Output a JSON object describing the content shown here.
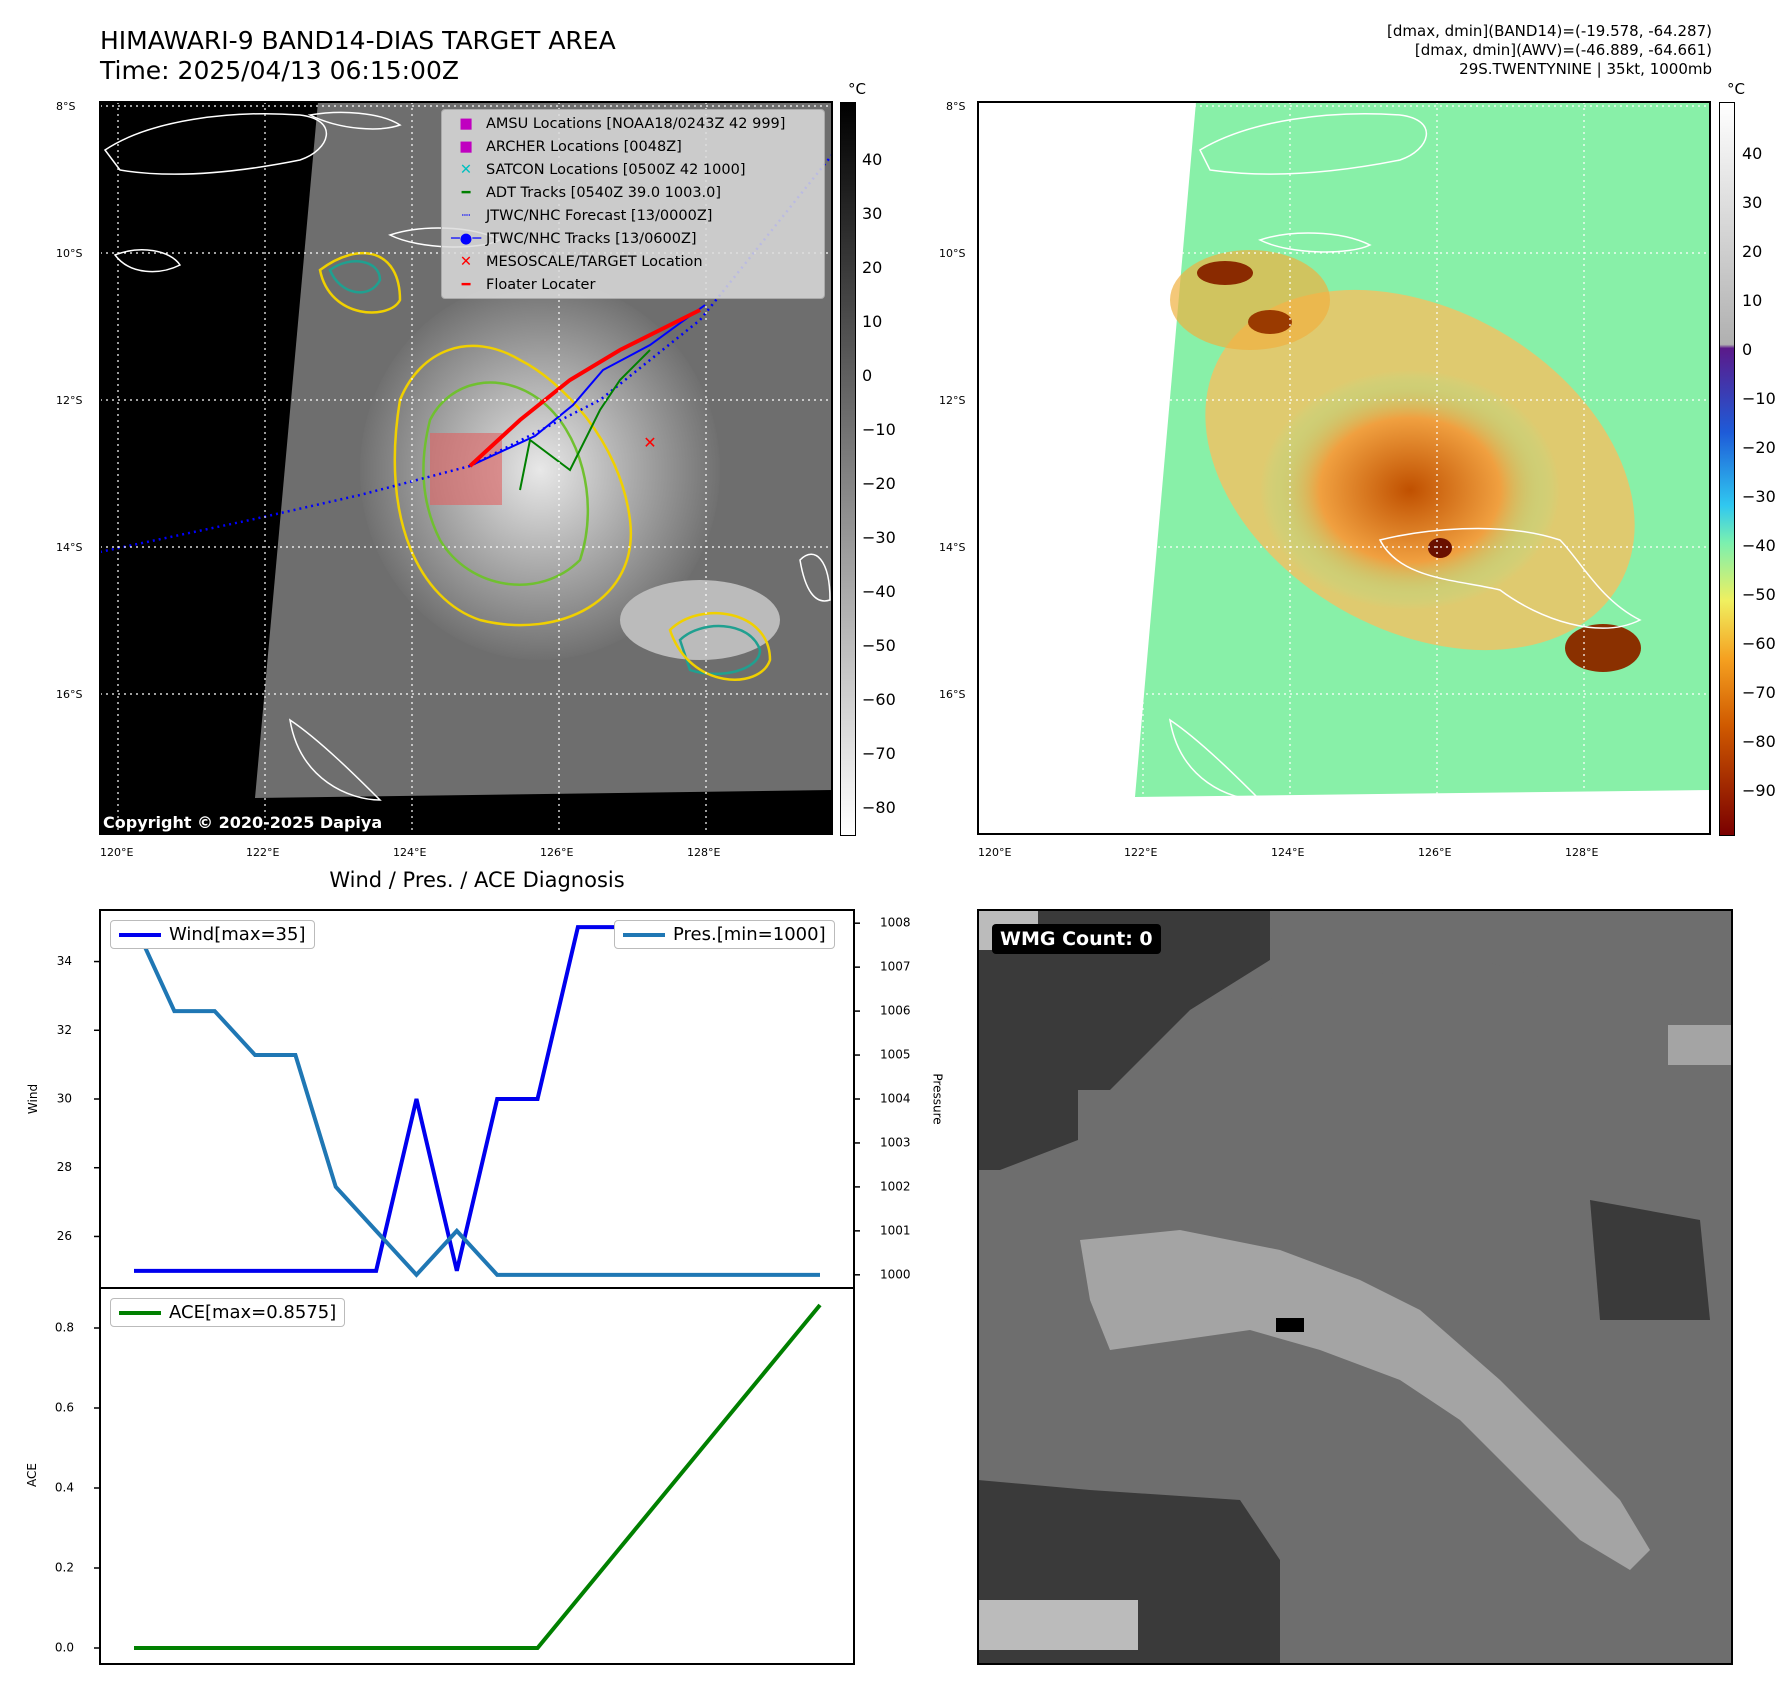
{
  "header": {
    "title_line1": "HIMAWARI-9 BAND14-DIAS TARGET AREA",
    "title_line2": "Time: 2025/04/13 06:15:00Z",
    "right_line1": "[dmax, dmin](BAND14)=(-19.578, -64.287)",
    "right_line2": "[dmax, dmin](AWV)=(-46.889, -64.661)",
    "right_line3": "29S.TWENTYNINE | 35kt, 1000mb"
  },
  "maps": {
    "lat_labels": [
      "8°S",
      "10°S",
      "12°S",
      "14°S",
      "16°S"
    ],
    "lon_labels": [
      "120°E",
      "122°E",
      "124°E",
      "126°E",
      "128°E"
    ],
    "copyright": "Copyright © 2020-2025 Dapiya",
    "colorbar_unit": "°C",
    "band14_colorbar_ticks": [
      "40",
      "30",
      "20",
      "10",
      "0",
      "−10",
      "−20",
      "−30",
      "−40",
      "−50",
      "−60",
      "−70",
      "−80"
    ],
    "awv_colorbar_ticks": [
      "40",
      "30",
      "20",
      "10",
      "0",
      "−10",
      "−20",
      "−30",
      "−40",
      "−50",
      "−60",
      "−70",
      "−80",
      "−90"
    ],
    "legend": [
      {
        "label": "AMSU Locations [NOAA18/0243Z 42 999]",
        "marker": "square",
        "color": "#c000c0"
      },
      {
        "label": "ARCHER Locations [0048Z]",
        "marker": "square",
        "color": "#c000c0"
      },
      {
        "label": "SATCON Locations [0500Z 42 1000]",
        "marker": "x",
        "color": "#00c0c0"
      },
      {
        "label": "ADT Tracks [0540Z 39.0 1003.0]",
        "marker": "line",
        "color": "#008000"
      },
      {
        "label": "JTWC/NHC Forecast [13/0000Z]",
        "marker": "dotted",
        "color": "#0000ff"
      },
      {
        "label": "JTWC/NHC Tracks [13/0600Z]",
        "marker": "line-dot",
        "color": "#0000ff"
      },
      {
        "label": "MESOSCALE/TARGET Location",
        "marker": "x",
        "color": "#ff0000"
      },
      {
        "label": "Floater Locater",
        "marker": "line",
        "color": "#ff0000"
      }
    ]
  },
  "wmg": {
    "label": "WMG Count: 0"
  },
  "chart_data": [
    {
      "type": "line",
      "title": "Wind / Pres. / ACE Diagnosis",
      "ylabel": "Wind",
      "y2label": "Pressure",
      "ylim": [
        24.5,
        35.5
      ],
      "y2lim": [
        999.7,
        1008.3
      ],
      "yticks": [
        26,
        28,
        30,
        32,
        34
      ],
      "y2ticks": [
        1000,
        1001,
        1002,
        1003,
        1004,
        1005,
        1006,
        1007,
        1008
      ],
      "x": [
        0,
        1,
        2,
        3,
        4,
        5,
        6,
        7,
        8,
        9,
        10,
        11,
        12,
        13,
        14,
        15,
        16,
        17
      ],
      "series": [
        {
          "name": "Wind[max=35]",
          "axis": "left",
          "color": "#0000ee",
          "values": [
            25,
            25,
            25,
            25,
            25,
            25,
            25,
            30,
            25,
            30,
            30,
            35,
            35,
            35,
            35,
            35,
            35,
            35
          ]
        },
        {
          "name": "Pres.[min=1000]",
          "axis": "right",
          "color": "#1f77b4",
          "values": [
            1008,
            1006,
            1006,
            1005,
            1005,
            1002,
            1001,
            1000,
            1001,
            1000,
            1000,
            1000,
            1000,
            1000,
            1000,
            1000,
            1000,
            1000
          ]
        }
      ]
    },
    {
      "type": "line",
      "ylabel": "ACE",
      "ylim": [
        -0.04,
        0.9
      ],
      "yticks": [
        0.0,
        0.2,
        0.4,
        0.6,
        0.8
      ],
      "ytick_labels": [
        "0.0",
        "0.2",
        "0.4",
        "0.6",
        "0.8"
      ],
      "x": [
        0,
        1,
        2,
        3,
        4,
        5,
        6,
        7,
        8,
        9,
        10,
        11,
        12,
        13,
        14,
        15,
        16,
        17
      ],
      "series": [
        {
          "name": "ACE[max=0.8575]",
          "color": "#008000",
          "values": [
            0,
            0,
            0,
            0,
            0,
            0,
            0,
            0,
            0,
            0,
            0,
            0.1225,
            0.245,
            0.3675,
            0.49,
            0.6125,
            0.735,
            0.8575
          ]
        }
      ]
    }
  ]
}
